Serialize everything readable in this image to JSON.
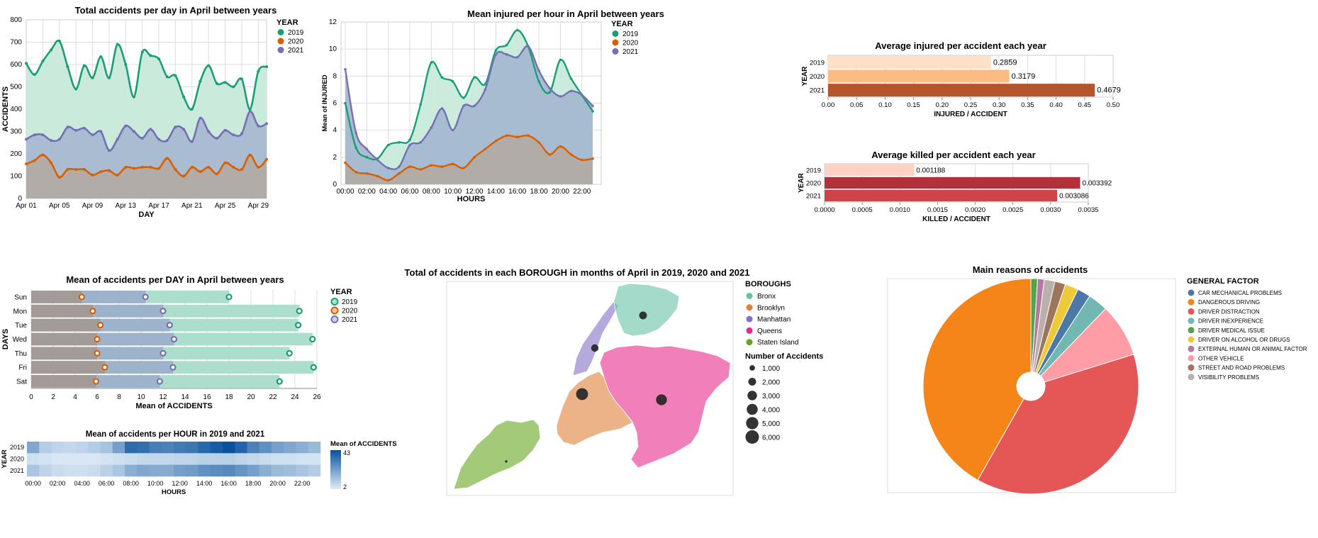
{
  "colors": {
    "y2019": "#1b9e77",
    "y2020": "#d95f02",
    "y2021": "#7570b3"
  },
  "chart_data": [
    {
      "id": "accidents_per_day",
      "type": "area",
      "title": "Total accidents per day in April between years",
      "xlabel": "DAY",
      "ylabel": "ACCIDENTS",
      "x_ticks": [
        "Apr 01",
        "Apr 05",
        "Apr 09",
        "Apr 13",
        "Apr 17",
        "Apr 21",
        "Apr 25",
        "Apr 29"
      ],
      "days": [
        1,
        2,
        3,
        4,
        5,
        6,
        7,
        8,
        9,
        10,
        11,
        12,
        13,
        14,
        15,
        16,
        17,
        18,
        19,
        20,
        21,
        22,
        23,
        24,
        25,
        26,
        27,
        28,
        29,
        30
      ],
      "ylim": [
        0,
        800
      ],
      "y_ticks": [
        0,
        100,
        200,
        300,
        400,
        500,
        600,
        700,
        800
      ],
      "legend_title": "YEAR",
      "series": [
        {
          "name": "2019",
          "values": [
            605,
            555,
            615,
            665,
            705,
            590,
            490,
            595,
            540,
            635,
            540,
            690,
            600,
            455,
            655,
            640,
            625,
            545,
            550,
            455,
            400,
            525,
            595,
            515,
            520,
            500,
            535,
            400,
            570,
            590
          ]
        },
        {
          "name": "2020",
          "values": [
            155,
            170,
            195,
            160,
            95,
            130,
            130,
            130,
            105,
            120,
            125,
            105,
            140,
            135,
            140,
            140,
            135,
            180,
            130,
            100,
            140,
            120,
            140,
            110,
            160,
            140,
            130,
            195,
            140,
            175
          ]
        },
        {
          "name": "2021",
          "values": [
            265,
            285,
            285,
            260,
            265,
            320,
            305,
            315,
            285,
            300,
            215,
            265,
            325,
            300,
            270,
            310,
            265,
            260,
            320,
            310,
            255,
            360,
            300,
            270,
            305,
            285,
            290,
            390,
            325,
            335
          ]
        }
      ]
    },
    {
      "id": "injured_per_hour",
      "type": "area",
      "title": "Mean injured per hour in April between years",
      "xlabel": "HOURS",
      "ylabel": "Mean of INJURED",
      "x_ticks": [
        "00:00",
        "02:00",
        "04:00",
        "06:00",
        "08:00",
        "10:00",
        "12:00",
        "14:00",
        "16:00",
        "18:00",
        "20:00",
        "22:00"
      ],
      "hours": [
        0,
        1,
        2,
        3,
        4,
        5,
        6,
        7,
        8,
        9,
        10,
        11,
        12,
        13,
        14,
        15,
        16,
        17,
        18,
        19,
        20,
        21,
        22,
        23
      ],
      "ylim": [
        0,
        12
      ],
      "y_ticks": [
        0,
        2,
        4,
        6,
        8,
        10,
        12
      ],
      "legend_title": "YEAR",
      "series": [
        {
          "name": "2019",
          "values": [
            6.0,
            2.7,
            2.0,
            1.9,
            2.9,
            3.1,
            3.3,
            5.9,
            9.0,
            7.9,
            7.6,
            6.4,
            7.9,
            7.4,
            9.9,
            10.3,
            11.4,
            10.2,
            7.6,
            6.8,
            9.2,
            7.8,
            6.6,
            5.4
          ]
        },
        {
          "name": "2020",
          "values": [
            1.6,
            0.9,
            0.8,
            0.6,
            0.3,
            0.8,
            1.3,
            1.1,
            1.4,
            1.3,
            1.5,
            1.2,
            2.0,
            2.6,
            3.2,
            3.6,
            3.5,
            3.6,
            3.1,
            2.2,
            2.8,
            2.2,
            1.8,
            1.9
          ]
        },
        {
          "name": "2021",
          "values": [
            8.5,
            3.8,
            2.6,
            1.8,
            1.2,
            1.3,
            2.9,
            3.1,
            4.2,
            5.6,
            4.0,
            5.8,
            5.8,
            7.0,
            9.6,
            9.6,
            9.4,
            10.2,
            8.4,
            7.1,
            6.5,
            6.9,
            6.6,
            5.8
          ]
        }
      ]
    },
    {
      "id": "avg_injured",
      "type": "bar",
      "orientation": "horizontal",
      "title": "Average injured per accident each year",
      "xlabel": "INJURED / ACCIDENT",
      "ylabel": "YEAR",
      "categories": [
        "2019",
        "2020",
        "2021"
      ],
      "values": [
        0.2859,
        0.3179,
        0.4679
      ],
      "labels": [
        "0.2859",
        "0.3179",
        "0.4679"
      ],
      "xlim": [
        0,
        0.5
      ],
      "x_ticks": [
        "0.00",
        "0.05",
        "0.10",
        "0.15",
        "0.20",
        "0.25",
        "0.30",
        "0.35",
        "0.40",
        "0.45",
        "0.50"
      ],
      "bar_colors": [
        "#fde0c5",
        "#fdbb84",
        "#b5552b"
      ]
    },
    {
      "id": "avg_killed",
      "type": "bar",
      "orientation": "horizontal",
      "title": "Average killed per accident each year",
      "xlabel": "KILLED / ACCIDENT",
      "ylabel": "YEAR",
      "categories": [
        "2019",
        "2020",
        "2021"
      ],
      "values": [
        0.001188,
        0.003392,
        0.003086
      ],
      "labels": [
        "0.001188",
        "0.003392",
        "0.003086"
      ],
      "xlim": [
        0,
        0.0035
      ],
      "x_ticks": [
        "0.0000",
        "0.0005",
        "0.0010",
        "0.0015",
        "0.0020",
        "0.0025",
        "0.0030",
        "0.0035"
      ],
      "bar_colors": [
        "#fcd2c4",
        "#b3303a",
        "#cf4448"
      ]
    },
    {
      "id": "accidents_per_weekday",
      "type": "bar",
      "orientation": "horizontal",
      "layered": true,
      "title": "Mean of accidents per DAY in April between years",
      "xlabel": "Mean of ACCIDENTS",
      "ylabel": "DAYS",
      "categories": [
        "Sun",
        "Mon",
        "Tue",
        "Wed",
        "Thu",
        "Fri",
        "Sat"
      ],
      "xlim": [
        0,
        26
      ],
      "x_ticks": [
        0,
        2,
        4,
        6,
        8,
        10,
        12,
        14,
        16,
        18,
        20,
        22,
        24,
        26
      ],
      "legend_title": "YEAR",
      "series": [
        {
          "name": "2019",
          "values": [
            18.0,
            24.4,
            24.3,
            25.6,
            23.5,
            25.7,
            22.6
          ]
        },
        {
          "name": "2020",
          "values": [
            4.6,
            5.6,
            6.3,
            6.0,
            6.0,
            6.7,
            5.9
          ]
        },
        {
          "name": "2021",
          "values": [
            10.4,
            12.0,
            12.6,
            13.0,
            12.0,
            12.9,
            11.7
          ]
        }
      ]
    },
    {
      "id": "accidents_per_hour_heatmap",
      "type": "heatmap",
      "title": "Mean of accidents per HOUR in 2019 and 2021",
      "xlabel": "HOURS",
      "ylabel": "YEAR",
      "rows": [
        "2019",
        "2020",
        "2021"
      ],
      "x_ticks": [
        "00:00",
        "02:00",
        "04:00",
        "06:00",
        "08:00",
        "10:00",
        "12:00",
        "14:00",
        "16:00",
        "18:00",
        "20:00",
        "22:00"
      ],
      "legend_title": "Mean of ACCIDENTS",
      "legend_max": "43",
      "legend_min": "2",
      "values": [
        [
          20,
          10,
          8,
          7,
          8,
          10,
          13,
          22,
          36,
          35,
          31,
          30,
          32,
          33,
          37,
          40,
          43,
          38,
          30,
          26,
          22,
          20,
          18,
          15
        ],
        [
          5,
          4,
          3,
          3,
          3,
          3,
          4,
          5,
          6,
          7,
          7,
          7,
          8,
          8,
          9,
          9,
          9,
          8,
          7,
          6,
          5,
          5,
          4,
          4
        ],
        [
          12,
          8,
          6,
          5,
          5,
          6,
          9,
          12,
          18,
          20,
          19,
          19,
          22,
          23,
          26,
          27,
          28,
          25,
          22,
          18,
          15,
          14,
          12,
          10
        ]
      ],
      "color_range": [
        2,
        43
      ]
    },
    {
      "id": "borough_map",
      "type": "map",
      "title": "Total of accidents in each BOROUGH in months of April in 2019, 2020 and 2021",
      "legend_title": "BOROUGHS",
      "boroughs": [
        {
          "name": "Bronx",
          "color": "#66c2a5",
          "accidents": 2000
        },
        {
          "name": "Brooklyn",
          "color": "#e0803a",
          "accidents": 4700
        },
        {
          "name": "Manhattan",
          "color": "#8470c7",
          "accidents": 1800
        },
        {
          "name": "Queens",
          "color": "#e7298a",
          "accidents": 3900
        },
        {
          "name": "Staten Island",
          "color": "#66a61e",
          "accidents": 200
        }
      ],
      "size_title": "Number of Accidents",
      "size_labels": [
        "1,000",
        "2,000",
        "3,000",
        "4,000",
        "5,000",
        "6,000"
      ],
      "size_values": [
        1000,
        2000,
        3000,
        4000,
        5000,
        6000
      ]
    },
    {
      "id": "reasons_pie",
      "type": "pie",
      "title": "Main reasons of accidents",
      "legend_title": "GENERAL FACTOR",
      "slices": [
        {
          "label": "DRIVER MEDICAL ISSUE",
          "value": 1.0,
          "color": "#54a24b"
        },
        {
          "label": "EXTERNAL HUMAN OR ANIMAL FACTOR",
          "value": 1.0,
          "color": "#b279a2"
        },
        {
          "label": "VISIBILITY PROBLEMS",
          "value": 1.6,
          "color": "#bab0ac"
        },
        {
          "label": "STREET AND ROAD PROBLEMS",
          "value": 1.6,
          "color": "#9d755d"
        },
        {
          "label": "DRIVER ON ALCOHOL OR DRUGS",
          "value": 2.0,
          "color": "#eeca3b"
        },
        {
          "label": "CAR MECHANICAL PROBLEMS",
          "value": 2.0,
          "color": "#4c78a8"
        },
        {
          "label": "DRIVER INEXPERIENCE",
          "value": 3.0,
          "color": "#72b7b2"
        },
        {
          "label": "OTHER VEHICLE",
          "value": 8.0,
          "color": "#ff9da6"
        },
        {
          "label": "DRIVER DISTRACTION",
          "value": 38.0,
          "color": "#e45756"
        },
        {
          "label": "DANGEROUS DRIVING",
          "value": 41.8,
          "color": "#f58518"
        }
      ],
      "legend_order": [
        "CAR MECHANICAL PROBLEMS",
        "DANGEROUS DRIVING",
        "DRIVER DISTRACTION",
        "DRIVER INEXPERIENCE",
        "DRIVER MEDICAL ISSUE",
        "DRIVER ON ALCOHOL OR DRUGS",
        "EXTERNAL HUMAN OR ANIMAL FACTOR",
        "OTHER VEHICLE",
        "STREET AND ROAD PROBLEMS",
        "VISIBILITY PROBLEMS"
      ]
    }
  ]
}
